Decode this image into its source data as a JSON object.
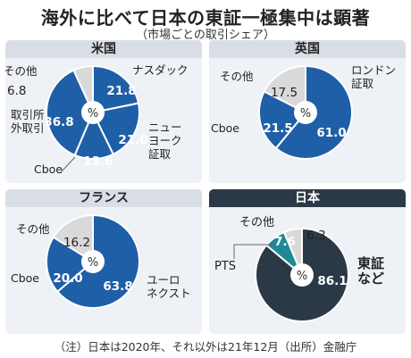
{
  "title": "海外に比べて日本の東証一極集中は顕著",
  "subtitle": "（市場ごとの取引シェア）",
  "note": "（注）日本は2020年、それ以外は21年12月（出所）金融庁",
  "center_label": "%",
  "colors": {
    "blue": "#1f5fa8",
    "gray": "#d9d9d9",
    "dark": "#2b3947",
    "teal": "#1e8a96",
    "panel_bg": "#eef1f5"
  },
  "chart_data": [
    {
      "type": "pie",
      "title": "米国",
      "slices": [
        {
          "label": "ナスダック",
          "value": 21.8,
          "display": "21.8",
          "color": "#1f5fa8"
        },
        {
          "label": "ニュー\nヨーク\n証取",
          "value": 21.0,
          "display": "21.0",
          "color": "#1f5fa8"
        },
        {
          "label": "Cboe",
          "value": 13.6,
          "display": "13.6",
          "color": "#1f5fa8"
        },
        {
          "label": "取引所\n外取引",
          "value": 36.8,
          "display": "36.8",
          "color": "#1f5fa8"
        },
        {
          "label": "その他",
          "value": 6.8,
          "display": "6.8",
          "color": "#d9d9d9"
        }
      ]
    },
    {
      "type": "pie",
      "title": "英国",
      "slices": [
        {
          "label": "ロンドン\n証取",
          "value": 61.0,
          "display": "61.0",
          "color": "#1f5fa8"
        },
        {
          "label": "Cboe",
          "value": 21.5,
          "display": "21.5",
          "color": "#1f5fa8"
        },
        {
          "label": "その他",
          "value": 17.5,
          "display": "17.5",
          "color": "#d9d9d9"
        }
      ]
    },
    {
      "type": "pie",
      "title": "フランス",
      "slices": [
        {
          "label": "ユーロ\nネクスト",
          "value": 63.8,
          "display": "63.8",
          "color": "#1f5fa8"
        },
        {
          "label": "Cboe",
          "value": 20.0,
          "display": "20.0",
          "color": "#1f5fa8"
        },
        {
          "label": "その他",
          "value": 16.2,
          "display": "16.2",
          "color": "#d9d9d9"
        }
      ]
    },
    {
      "type": "pie",
      "title": "日本",
      "slices": [
        {
          "label": "東証\nなど",
          "value": 86.1,
          "display": "86.1",
          "color": "#2b3947"
        },
        {
          "label": "PTS",
          "value": 7.6,
          "display": "7.6",
          "color": "#1e8a96"
        },
        {
          "label": "その他",
          "value": 6.3,
          "display": "6.3",
          "color": "#d9d9d9"
        }
      ]
    }
  ]
}
